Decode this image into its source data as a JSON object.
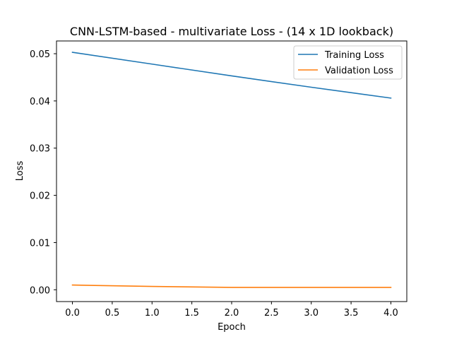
{
  "chart_data": {
    "type": "line",
    "title": "CNN-LSTM-based - multivariate Loss - (14 x 1D lookback)",
    "xlabel": "Epoch",
    "ylabel": "Loss",
    "x": [
      0,
      1,
      2,
      3,
      4
    ],
    "xlim": [
      -0.2,
      4.2
    ],
    "ylim": [
      -0.0025,
      0.0527
    ],
    "xticks": [
      0.0,
      0.5,
      1.0,
      1.5,
      2.0,
      2.5,
      3.0,
      3.5,
      4.0
    ],
    "xtick_labels": [
      "0.0",
      "0.5",
      "1.0",
      "1.5",
      "2.0",
      "2.5",
      "3.0",
      "3.5",
      "4.0"
    ],
    "yticks": [
      0.0,
      0.01,
      0.02,
      0.03,
      0.04,
      0.05
    ],
    "ytick_labels": [
      "0.00",
      "0.01",
      "0.02",
      "0.03",
      "0.04",
      "0.05"
    ],
    "grid": false,
    "legend_position": "top-right",
    "series": [
      {
        "name": "Training Loss",
        "color": "#1f77b4",
        "values": [
          0.0503,
          0.0478,
          0.0453,
          0.0429,
          0.0406
        ]
      },
      {
        "name": "Validation Loss",
        "color": "#ff7f0e",
        "values": [
          0.001,
          0.0007,
          0.0005,
          0.0005,
          0.0005
        ]
      }
    ]
  }
}
